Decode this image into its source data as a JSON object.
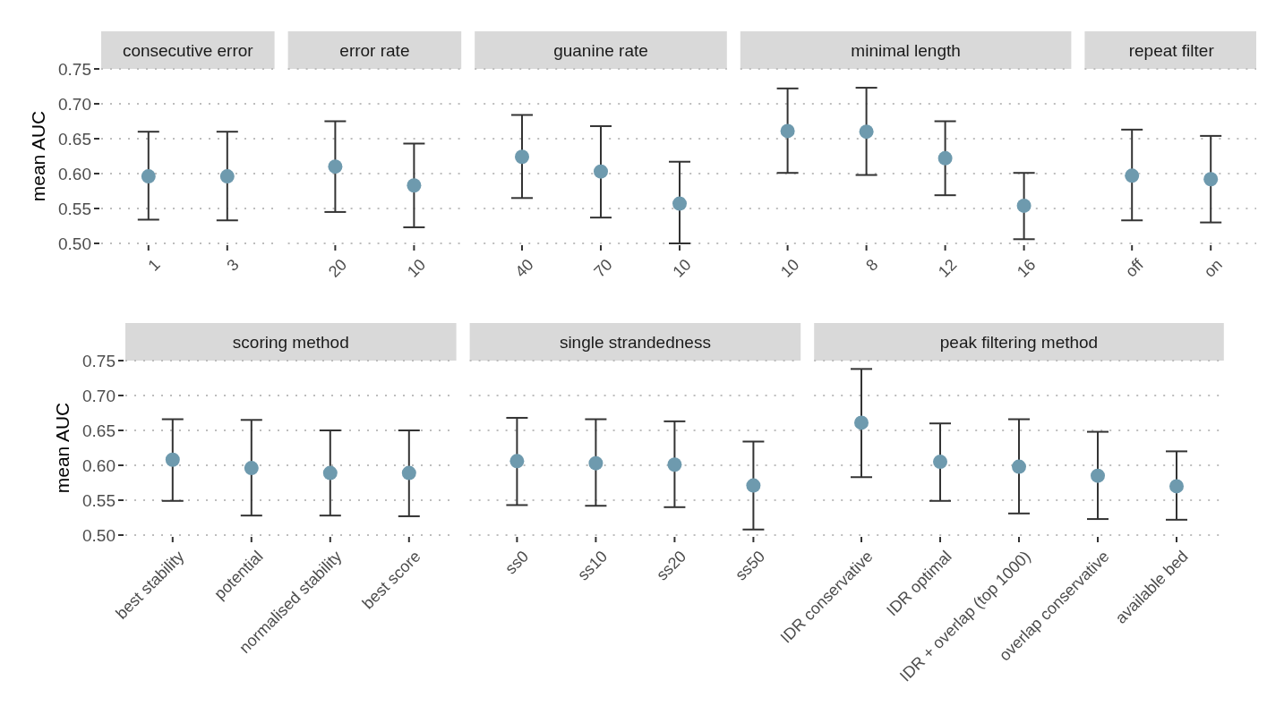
{
  "chart_data": [
    {
      "type": "scatter",
      "title": "consecutive error",
      "ylabel": "mean AUC",
      "categories": [
        "1",
        "3"
      ],
      "values": [
        0.596,
        0.596
      ],
      "errors": [
        [
          0.534,
          0.66
        ],
        [
          0.533,
          0.66
        ]
      ],
      "color": "#6e9aae",
      "marker": "circle",
      "ylim": [
        0.5,
        0.75
      ],
      "yticks": [
        {
          "value": 0.5,
          "label": "0.50"
        },
        {
          "value": 0.55,
          "label": "0.55"
        },
        {
          "value": 0.6,
          "label": "0.60"
        },
        {
          "value": 0.65,
          "label": "0.65"
        },
        {
          "value": 0.7,
          "label": "0.70"
        },
        {
          "value": 0.75,
          "label": "0.75"
        }
      ],
      "grid": "y"
    },
    {
      "type": "scatter",
      "title": "error rate",
      "categories": [
        "20",
        "10"
      ],
      "values": [
        0.61,
        0.583
      ],
      "errors": [
        [
          0.545,
          0.675
        ],
        [
          0.523,
          0.643
        ]
      ],
      "color": "#6e9aae",
      "marker": "circle",
      "ylim": [
        0.5,
        0.75
      ],
      "yticks": [
        {
          "value": 0.5,
          "label": null
        },
        {
          "value": 0.55,
          "label": null
        },
        {
          "value": 0.6,
          "label": null
        },
        {
          "value": 0.65,
          "label": null
        },
        {
          "value": 0.7,
          "label": null
        },
        {
          "value": 0.75,
          "label": null
        }
      ],
      "grid": "y",
      "tick_labels": "x"
    },
    {
      "type": "scatter",
      "title": "guanine rate",
      "categories": [
        "40",
        "70",
        "10"
      ],
      "values": [
        0.624,
        0.603,
        0.557
      ],
      "errors": [
        [
          0.565,
          0.684
        ],
        [
          0.537,
          0.668
        ],
        [
          0.5,
          0.617
        ]
      ],
      "color": "#6e9aae",
      "marker": "circle",
      "ylim": [
        0.5,
        0.75
      ],
      "yticks": [
        {
          "value": 0.5,
          "label": null
        },
        {
          "value": 0.55,
          "label": null
        },
        {
          "value": 0.6,
          "label": null
        },
        {
          "value": 0.65,
          "label": null
        },
        {
          "value": 0.7,
          "label": null
        },
        {
          "value": 0.75,
          "label": null
        }
      ],
      "grid": "y",
      "tick_labels": "x"
    },
    {
      "type": "scatter",
      "title": "minimal length",
      "categories": [
        "10",
        "8",
        "12",
        "16"
      ],
      "values": [
        0.661,
        0.66,
        0.622,
        0.554
      ],
      "errors": [
        [
          0.601,
          0.722
        ],
        [
          0.598,
          0.723
        ],
        [
          0.569,
          0.675
        ],
        [
          0.506,
          0.601
        ]
      ],
      "color": "#6e9aae",
      "marker": "circle",
      "ylim": [
        0.5,
        0.75
      ],
      "yticks": [
        {
          "value": 0.5,
          "label": null
        },
        {
          "value": 0.55,
          "label": null
        },
        {
          "value": 0.6,
          "label": null
        },
        {
          "value": 0.65,
          "label": null
        },
        {
          "value": 0.7,
          "label": null
        },
        {
          "value": 0.75,
          "label": null
        }
      ],
      "grid": "y",
      "tick_labels": "x"
    },
    {
      "type": "scatter",
      "title": "repeat filter",
      "categories": [
        "off",
        "on"
      ],
      "values": [
        0.597,
        0.592
      ],
      "errors": [
        [
          0.533,
          0.663
        ],
        [
          0.53,
          0.654
        ]
      ],
      "color": "#6e9aae",
      "marker": "circle",
      "ylim": [
        0.5,
        0.75
      ],
      "yticks": [
        {
          "value": 0.5,
          "label": null
        },
        {
          "value": 0.55,
          "label": null
        },
        {
          "value": 0.6,
          "label": null
        },
        {
          "value": 0.65,
          "label": null
        },
        {
          "value": 0.7,
          "label": null
        },
        {
          "value": 0.75,
          "label": null
        }
      ],
      "grid": "y",
      "tick_labels": "x"
    },
    {
      "type": "scatter",
      "title": "scoring method",
      "ylabel": "mean AUC",
      "categories": [
        "best stability",
        "potential",
        "normalised stability",
        "best score"
      ],
      "values": [
        0.608,
        0.596,
        0.589,
        0.589
      ],
      "errors": [
        [
          0.549,
          0.666
        ],
        [
          0.528,
          0.665
        ],
        [
          0.528,
          0.65
        ],
        [
          0.527,
          0.65
        ]
      ],
      "color": "#6e9aae",
      "marker": "circle",
      "ylim": [
        0.5,
        0.75
      ],
      "yticks": [
        {
          "value": 0.5,
          "label": "0.50"
        },
        {
          "value": 0.55,
          "label": "0.55"
        },
        {
          "value": 0.6,
          "label": "0.60"
        },
        {
          "value": 0.65,
          "label": "0.65"
        },
        {
          "value": 0.7,
          "label": "0.70"
        },
        {
          "value": 0.75,
          "label": "0.75"
        }
      ],
      "grid": "y"
    },
    {
      "type": "scatter",
      "title": "single strandedness",
      "categories": [
        "ss0",
        "ss10",
        "ss20",
        "ss50"
      ],
      "values": [
        0.606,
        0.603,
        0.601,
        0.571
      ],
      "errors": [
        [
          0.543,
          0.668
        ],
        [
          0.542,
          0.666
        ],
        [
          0.54,
          0.663
        ],
        [
          0.508,
          0.634
        ]
      ],
      "color": "#6e9aae",
      "marker": "circle",
      "ylim": [
        0.5,
        0.75
      ],
      "yticks": [
        {
          "value": 0.5,
          "label": null
        },
        {
          "value": 0.55,
          "label": null
        },
        {
          "value": 0.6,
          "label": null
        },
        {
          "value": 0.65,
          "label": null
        },
        {
          "value": 0.7,
          "label": null
        },
        {
          "value": 0.75,
          "label": null
        }
      ],
      "grid": "y",
      "tick_labels": "x"
    },
    {
      "type": "scatter",
      "title": "peak filtering method",
      "categories": [
        "IDR conservative",
        "IDR optimal",
        "IDR + overlap (top 1000)",
        "overlap conservative",
        "available bed"
      ],
      "values": [
        0.661,
        0.605,
        0.598,
        0.585,
        0.57
      ],
      "errors": [
        [
          0.583,
          0.738
        ],
        [
          0.549,
          0.66
        ],
        [
          0.531,
          0.666
        ],
        [
          0.523,
          0.648
        ],
        [
          0.522,
          0.62
        ]
      ],
      "color": "#6e9aae",
      "marker": "circle",
      "ylim": [
        0.5,
        0.75
      ],
      "yticks": [
        {
          "value": 0.5,
          "label": null
        },
        {
          "value": 0.55,
          "label": null
        },
        {
          "value": 0.6,
          "label": null
        },
        {
          "value": 0.65,
          "label": null
        },
        {
          "value": 0.7,
          "label": null
        },
        {
          "value": 0.75,
          "label": null
        }
      ],
      "grid": "y",
      "tick_labels": "x"
    }
  ]
}
